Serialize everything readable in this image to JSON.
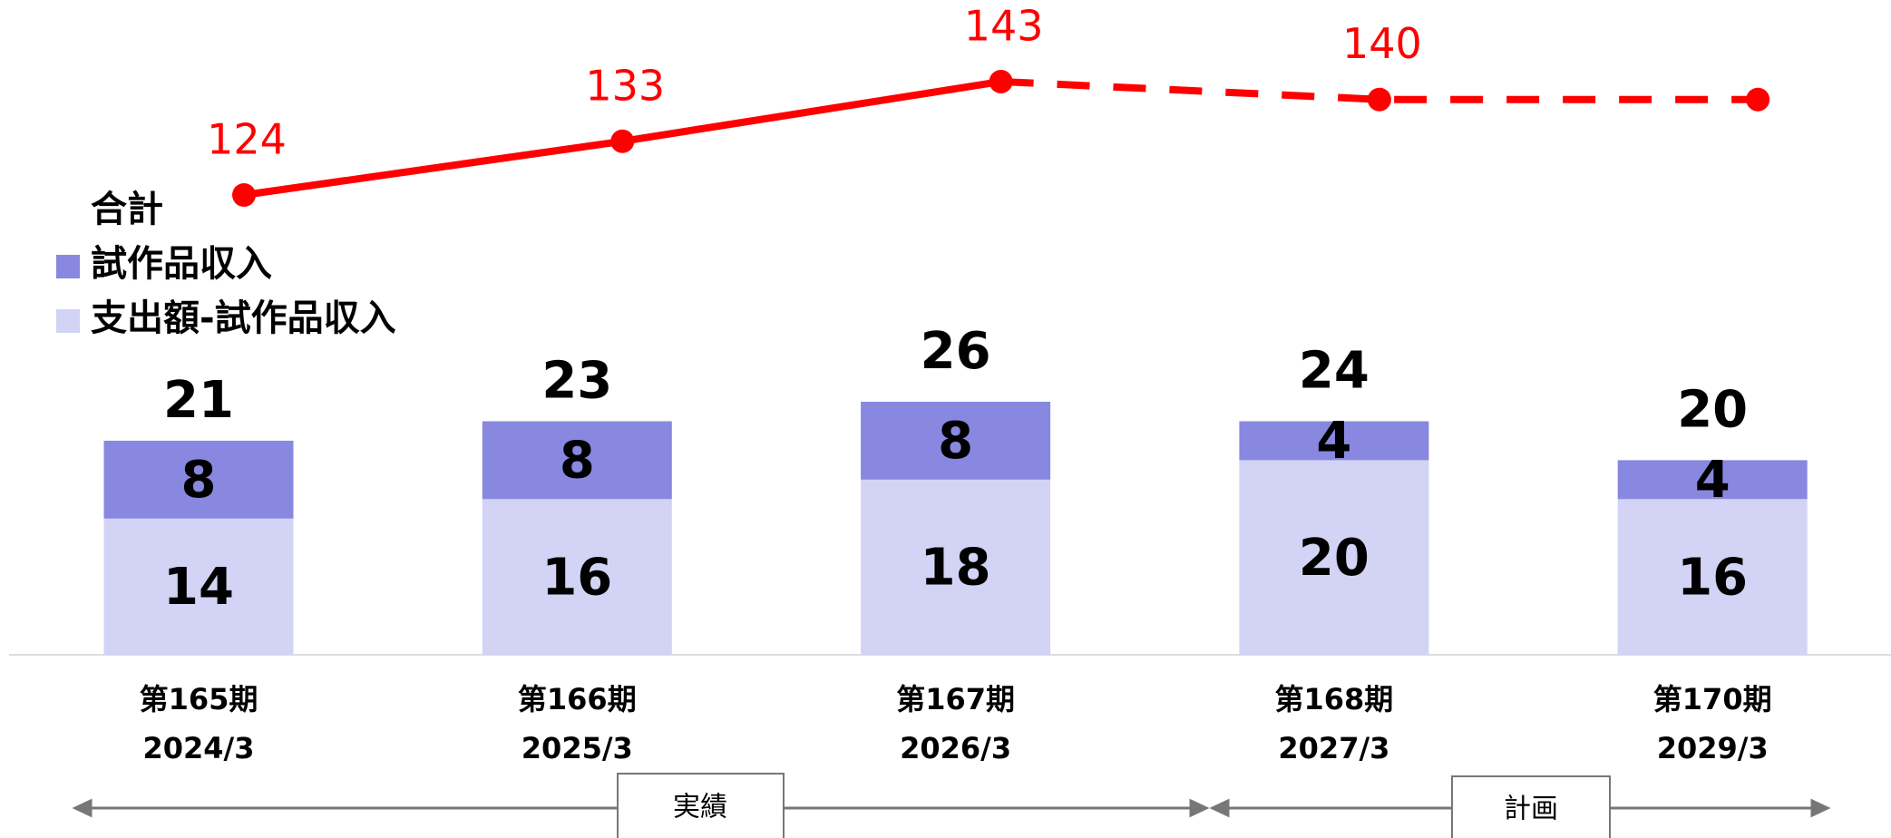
{
  "chart_data": {
    "type": "stacked_bar_line",
    "categories": [
      "第165期",
      "第166期",
      "第167期",
      "第168期",
      "第170期"
    ],
    "dates": [
      "2024/3",
      "2025/3",
      "2026/3",
      "2027/3",
      "2029/3"
    ],
    "series": [
      {
        "name": "支出額-試作品収入",
        "color": "#d3d3f5",
        "values": [
          14,
          16,
          18,
          20,
          16
        ]
      },
      {
        "name": "試作品収入",
        "color": "#8888e0",
        "values": [
          8,
          8,
          8,
          4,
          4
        ]
      }
    ],
    "totals": {
      "name": "合計",
      "values": [
        21,
        23,
        26,
        24,
        20
      ]
    },
    "line": {
      "color": "#ff0000",
      "values": [
        124,
        133,
        143,
        140,
        140
      ],
      "value_labels": [
        "124",
        "133",
        "143",
        "140",
        null
      ],
      "dashed_from": 2
    },
    "annotations": [
      "実績",
      "計画"
    ]
  }
}
